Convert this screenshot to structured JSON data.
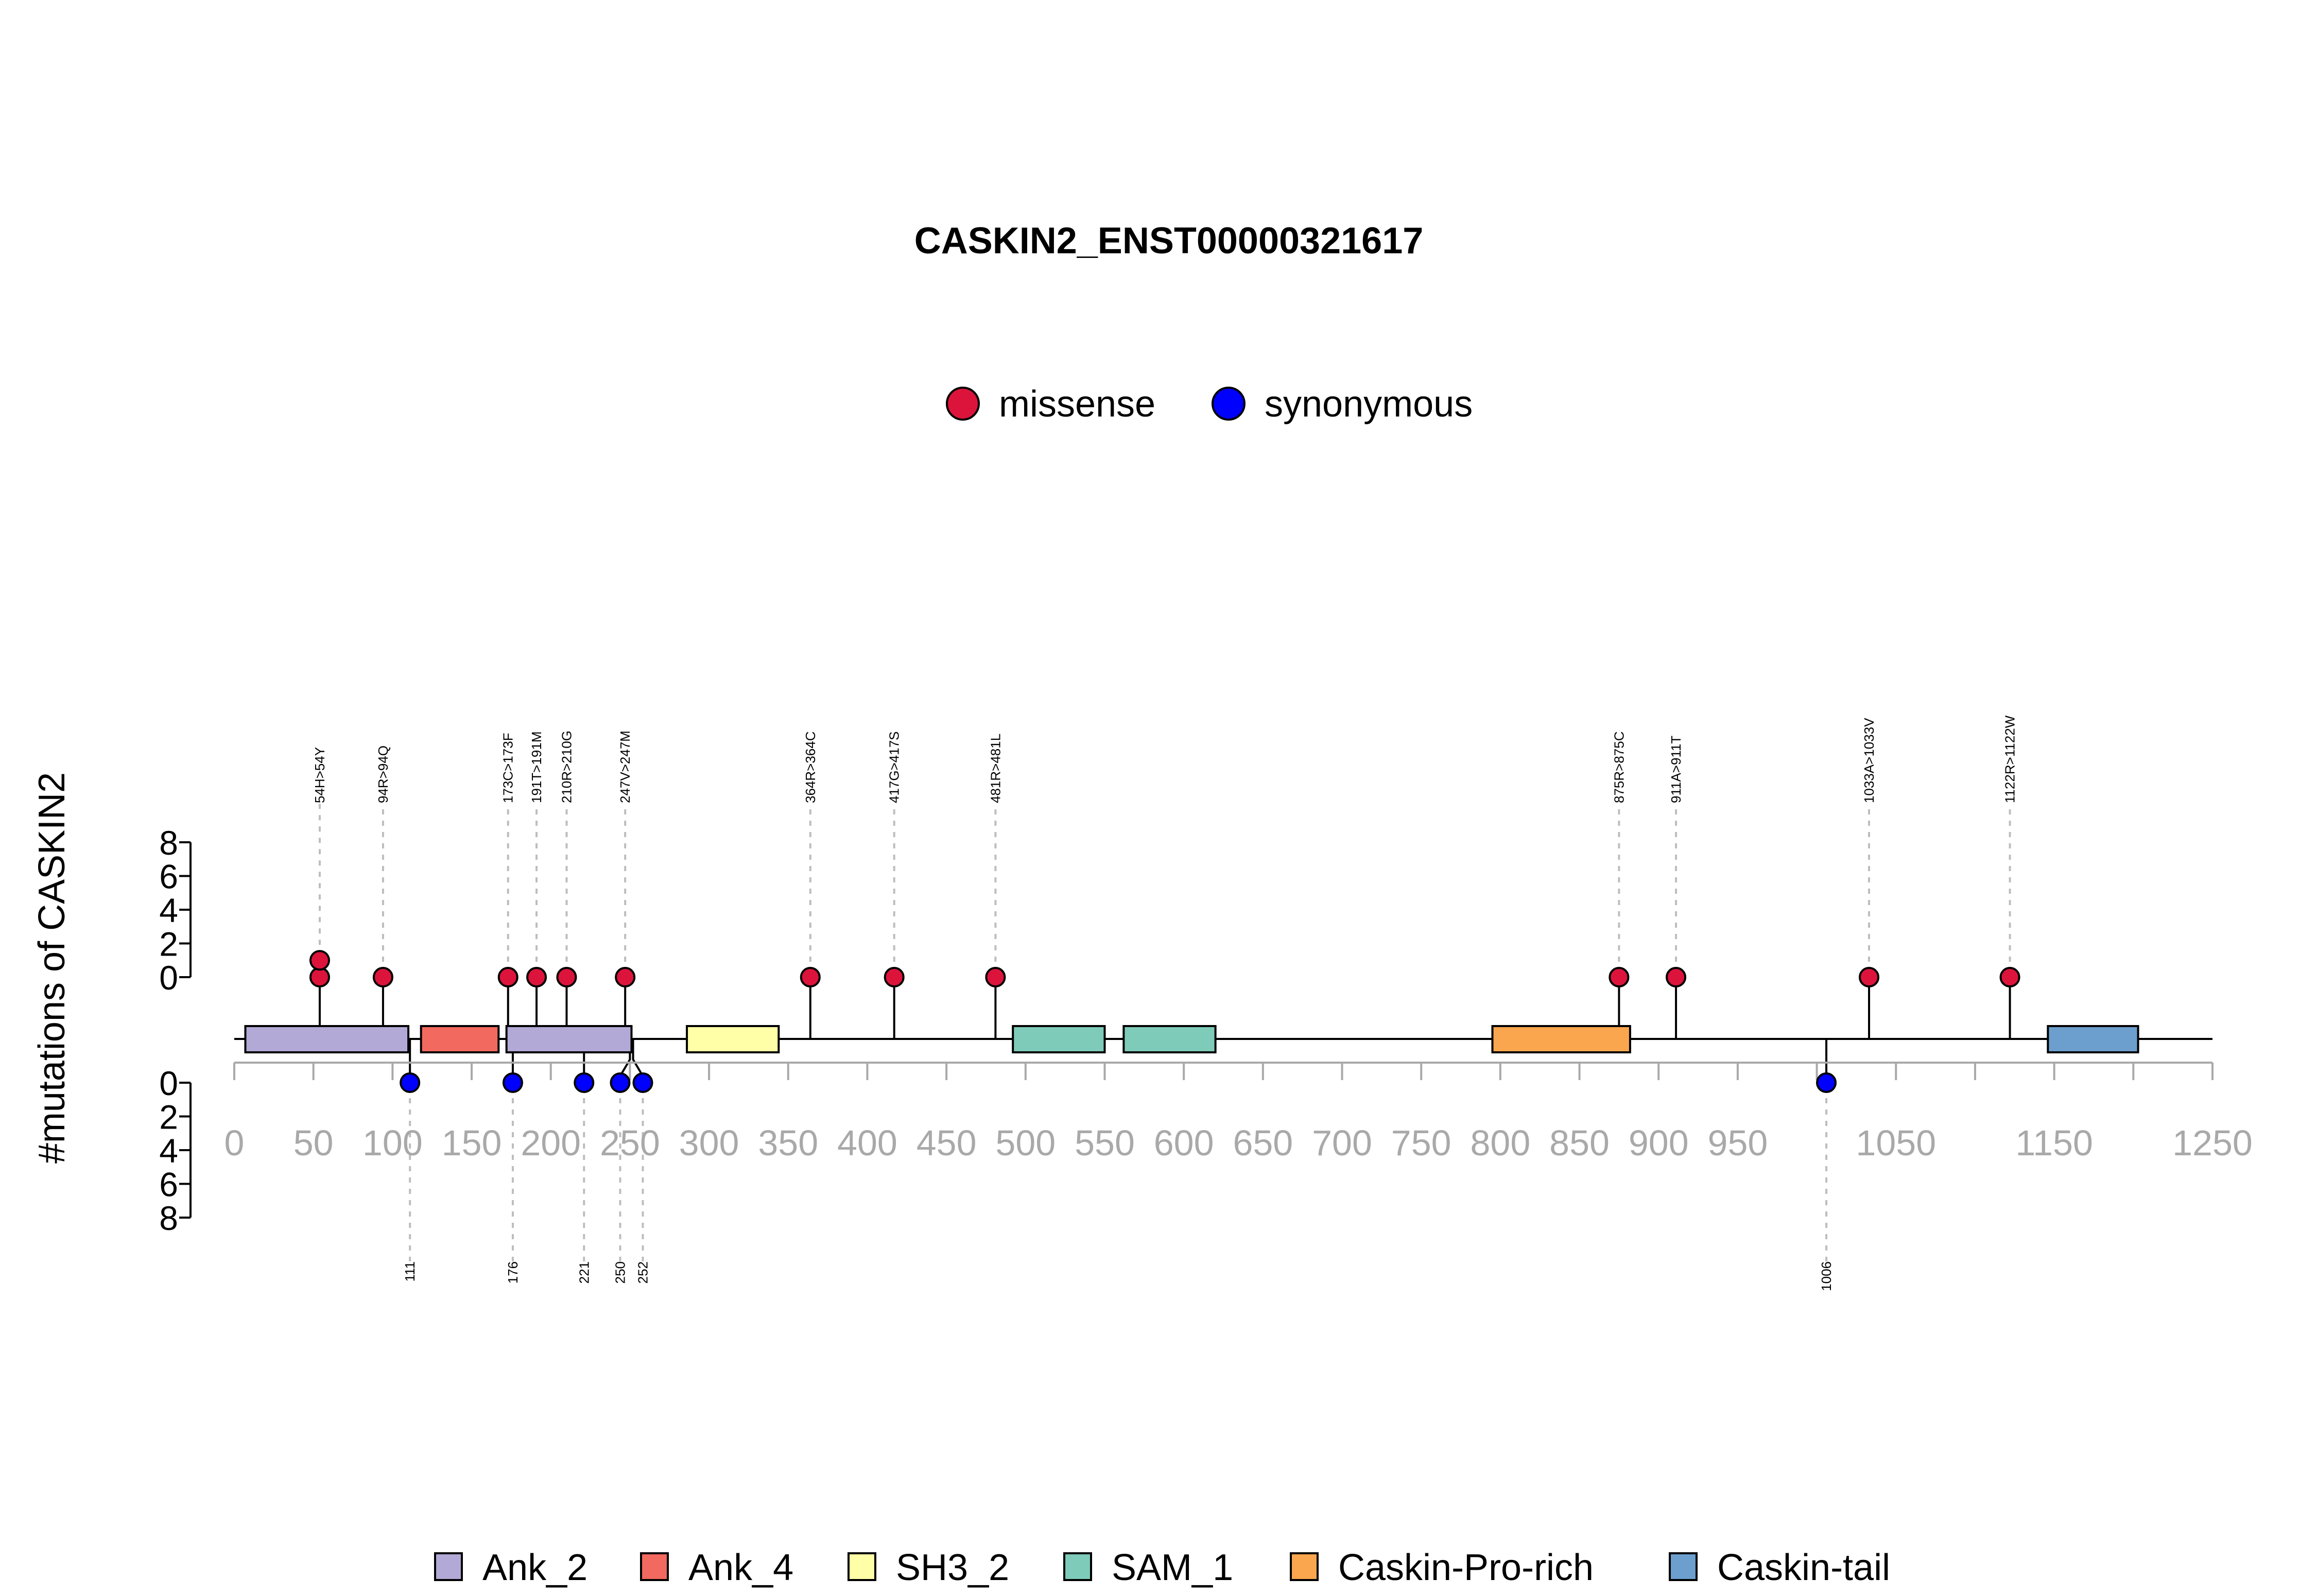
{
  "colors": {
    "missense": "#dc143c",
    "synonymous": "#0000ff",
    "Ank_2": "#b3a9d6",
    "Ank_4": "#f2695f",
    "SH3_2": "#ffffa8",
    "SAM_1": "#7ecbb9",
    "Caskin-Pro-rich": "#f9a64e",
    "Caskin-tail": "#6c9fcd",
    "axis_gray": "#a9a9a9"
  },
  "chart_data": {
    "type": "lollipop",
    "title": "CASKIN2_ENST00000321617",
    "ylabel": "#mutations of CASKIN2",
    "xlim": [
      0,
      1250
    ],
    "x_ticks": [
      0,
      50,
      100,
      150,
      200,
      250,
      300,
      350,
      400,
      450,
      500,
      550,
      600,
      650,
      700,
      750,
      800,
      850,
      900,
      950,
      1050,
      1150,
      1250
    ],
    "y_ticks": [
      0,
      2,
      4,
      6,
      8
    ],
    "ylim": [
      0,
      8
    ],
    "legend_mutation": [
      {
        "name": "missense",
        "color": "#dc143c"
      },
      {
        "name": "synonymous",
        "color": "#0000ff"
      }
    ],
    "legend_domains": [
      "Ank_2",
      "Ank_4",
      "SH3_2",
      "SAM_1",
      "Caskin-Pro-rich",
      "Caskin-tail"
    ],
    "domains": [
      {
        "name": "Ank_2",
        "start": 7,
        "end": 110
      },
      {
        "name": "Ank_4",
        "start": 118,
        "end": 167
      },
      {
        "name": "Ank_2",
        "start": 172,
        "end": 251
      },
      {
        "name": "SH3_2",
        "start": 286,
        "end": 344
      },
      {
        "name": "SAM_1",
        "start": 492,
        "end": 550
      },
      {
        "name": "SAM_1",
        "start": 562,
        "end": 620
      },
      {
        "name": "Caskin-Pro-rich",
        "start": 795,
        "end": 882
      },
      {
        "name": "Caskin-tail",
        "start": 1146,
        "end": 1203
      }
    ],
    "missense": [
      {
        "pos": 54,
        "label": "54H>54Y",
        "count": 2
      },
      {
        "pos": 94,
        "label": "94R>94Q",
        "count": 1
      },
      {
        "pos": 173,
        "label": "173C>173F",
        "count": 1
      },
      {
        "pos": 191,
        "label": "191T>191M",
        "count": 1
      },
      {
        "pos": 210,
        "label": "210R>210G",
        "count": 1
      },
      {
        "pos": 247,
        "label": "247V>247M",
        "count": 1
      },
      {
        "pos": 364,
        "label": "364R>364C",
        "count": 1
      },
      {
        "pos": 417,
        "label": "417G>417S",
        "count": 1
      },
      {
        "pos": 481,
        "label": "481R>481L",
        "count": 1
      },
      {
        "pos": 875,
        "label": "875R>875C",
        "count": 1
      },
      {
        "pos": 911,
        "label": "911A>911T",
        "count": 1
      },
      {
        "pos": 1033,
        "label": "1033A>1033V",
        "count": 1
      },
      {
        "pos": 1122,
        "label": "1122R>1122W",
        "count": 1
      }
    ],
    "synonymous": [
      {
        "pos": 111,
        "label": "111",
        "count": 1
      },
      {
        "pos": 176,
        "label": "176",
        "count": 1
      },
      {
        "pos": 221,
        "label": "221",
        "count": 1
      },
      {
        "pos": 250,
        "label": "250",
        "count": 1
      },
      {
        "pos": 252,
        "label": "252",
        "count": 1
      },
      {
        "pos": 1006,
        "label": "1006",
        "count": 1
      }
    ]
  }
}
